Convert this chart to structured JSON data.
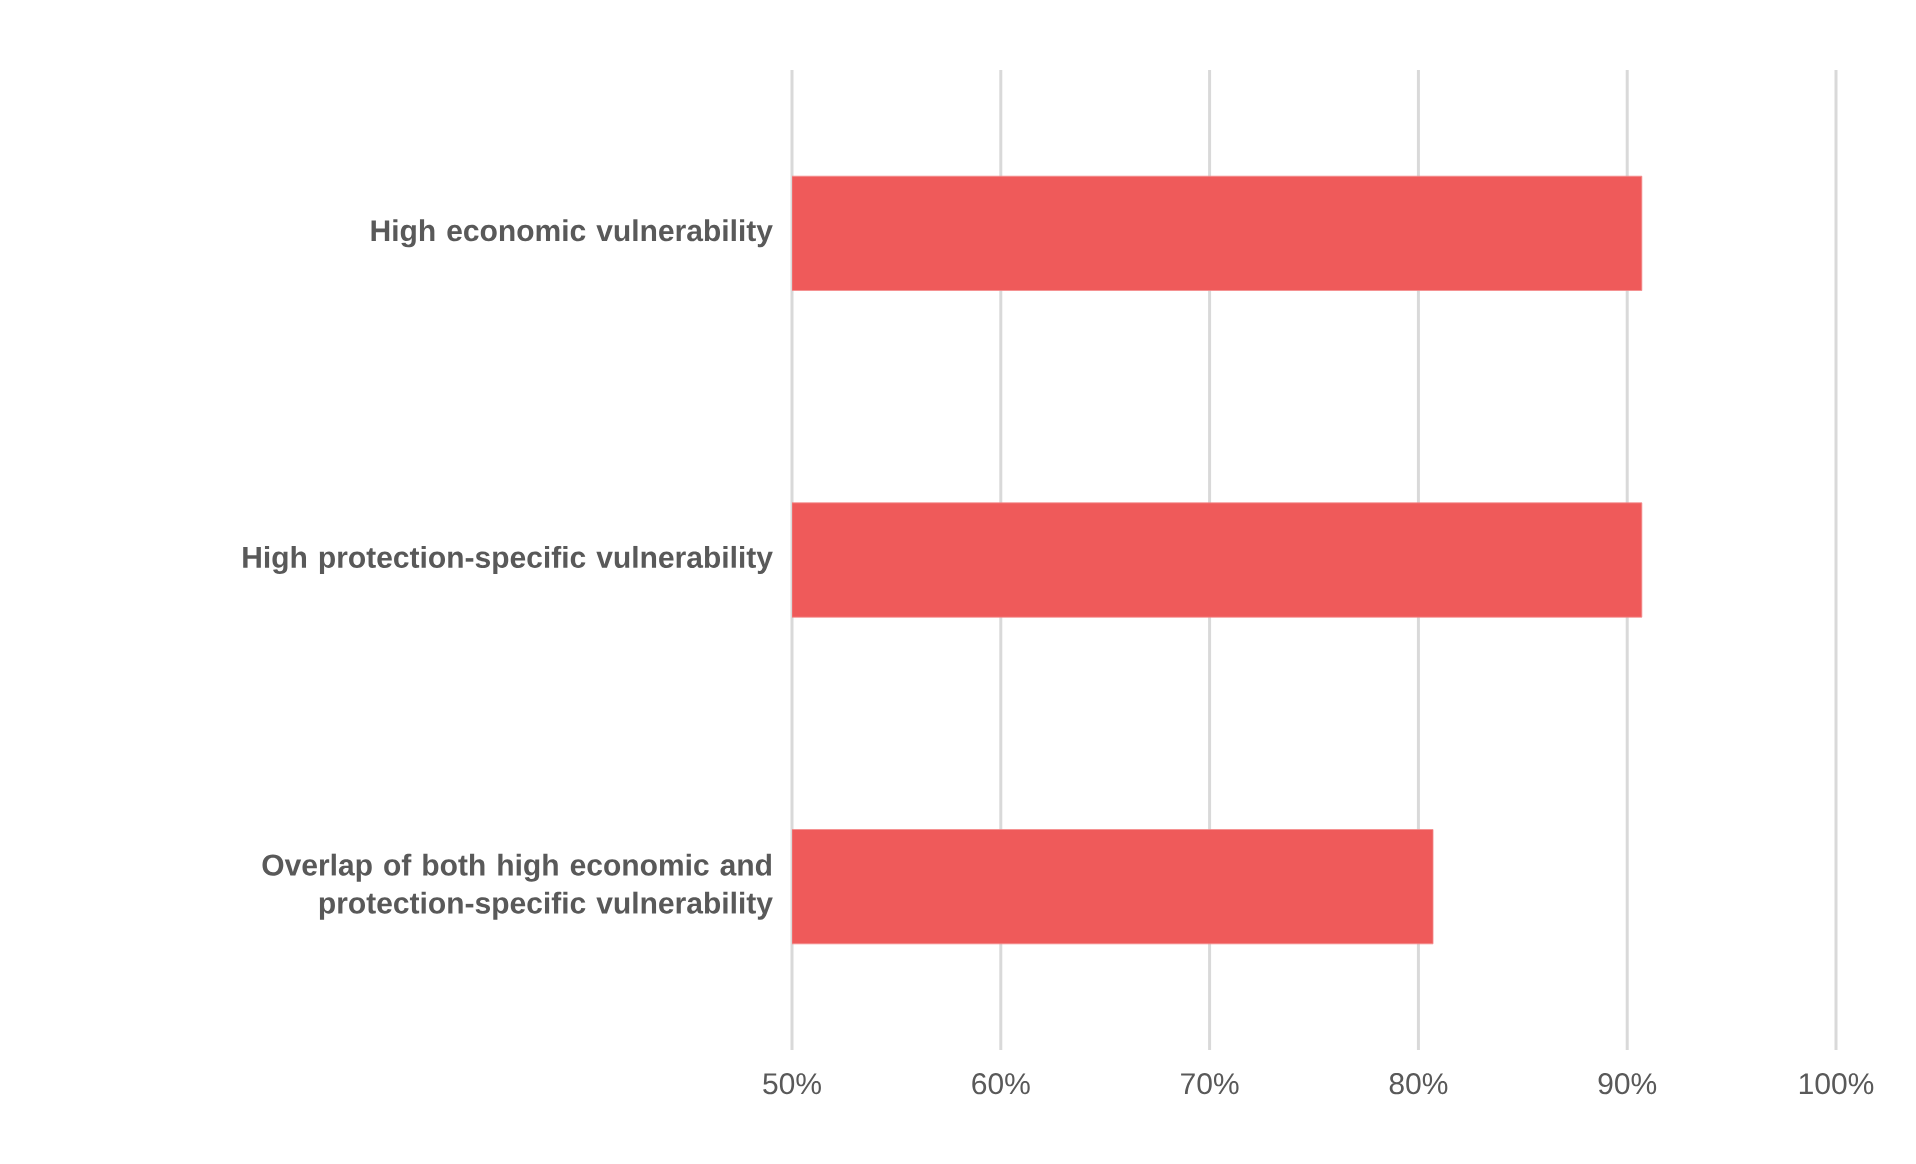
{
  "chart_data": {
    "type": "bar",
    "orientation": "horizontal",
    "categories": [
      "High economic vulnerability",
      "High protection-specific vulnerability",
      "Overlap of both high economic and protection-specific vulnerability"
    ],
    "values": [
      90.7,
      90.7,
      80.7
    ],
    "color": "#ef5a5a",
    "xlim": [
      50,
      100
    ],
    "xticks": [
      {
        "value": 50,
        "label": "50%"
      },
      {
        "value": 60,
        "label": "60%"
      },
      {
        "value": 70,
        "label": "70%"
      },
      {
        "value": 80,
        "label": "80%"
      },
      {
        "value": 90,
        "label": "90%"
      },
      {
        "value": 100,
        "label": "100%"
      }
    ],
    "grid": "x"
  }
}
